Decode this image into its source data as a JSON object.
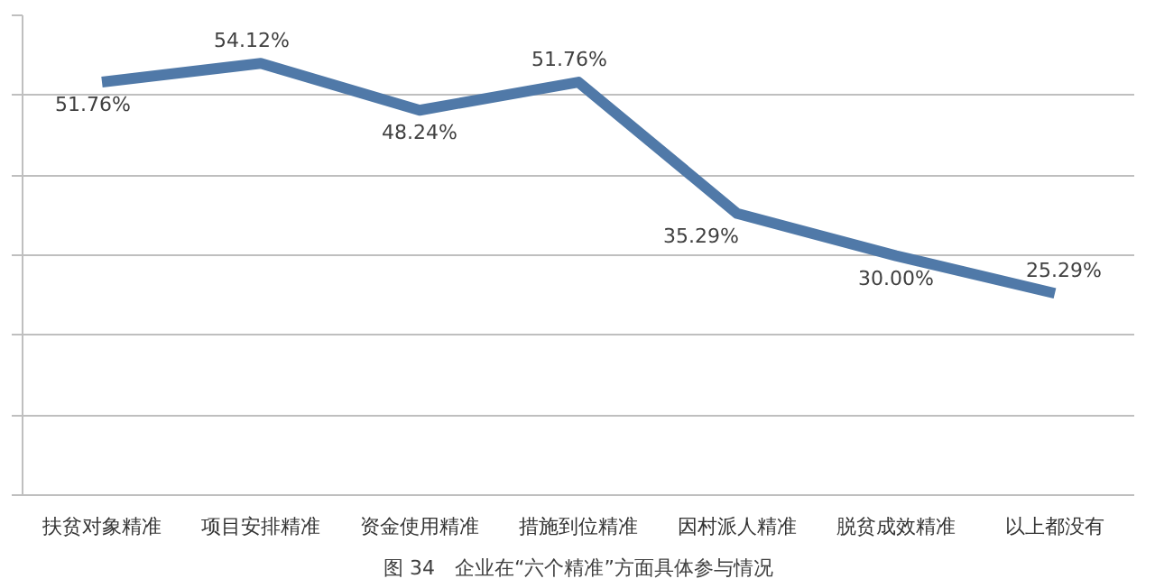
{
  "chart_data": {
    "type": "line",
    "title": "图 34　企业在“六个精准”方面具体参与情况",
    "categories": [
      "扶贫对象精准",
      "项目安排精准",
      "资金使用精准",
      "措施到位精准",
      "因村派人精准",
      "脱贫成效精准",
      "以上都没有"
    ],
    "series": [
      {
        "color": "#5079a8",
        "values": [
          51.76,
          54.12,
          48.24,
          51.76,
          35.29,
          30.0,
          25.29
        ],
        "value_labels": [
          "51.76%",
          "54.12%",
          "48.24%",
          "51.76%",
          "35.29%",
          "30.00%",
          "25.29%"
        ]
      }
    ],
    "grid": "y",
    "marker": "none",
    "line_style": "solid"
  }
}
